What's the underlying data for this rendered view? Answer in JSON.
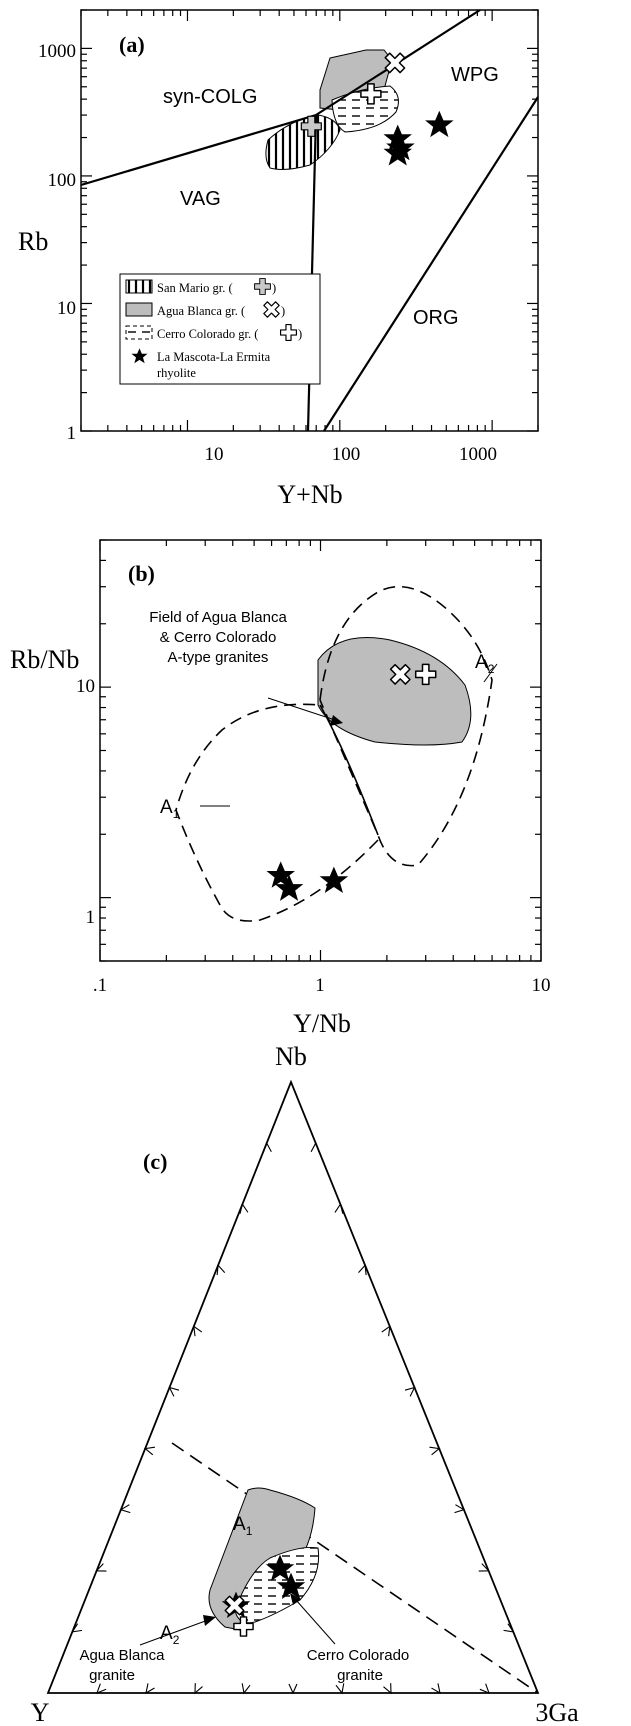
{
  "chart_data": [
    {
      "panel": "(a)",
      "type": "scatter",
      "xlabel": "Y+Nb",
      "ylabel": "Rb",
      "xscale": "log",
      "yscale": "log",
      "xlim": [
        2,
        2000
      ],
      "ylim": [
        1,
        2000
      ],
      "x_ticks": [
        "10",
        "100",
        "1000"
      ],
      "y_ticks": [
        "1",
        "10",
        "100",
        "1000"
      ],
      "fields": [
        "syn-COLG",
        "WPG",
        "VAG",
        "ORG"
      ],
      "legend_position": "bottom-left",
      "legend": [
        {
          "label": "San Mario gr. (",
          "after": ")",
          "symbol": "cross",
          "fill": "vertical-lines"
        },
        {
          "label": "Agua Blanca gr. (",
          "after": ")",
          "symbol": "x",
          "fill": "gray"
        },
        {
          "label": "Cerro Colorado gr. (",
          "after": ")",
          "symbol": "plus",
          "fill": "dashed"
        },
        {
          "label": "La Mascota-La Ermita",
          "label2": "rhyolite",
          "symbol": "star"
        }
      ],
      "series": [
        {
          "name": "San Mario gr.",
          "points": [
            {
              "x": 65,
              "y": 245
            }
          ]
        },
        {
          "name": "Agua Blanca gr.",
          "points": [
            {
              "x": 230,
              "y": 770
            }
          ]
        },
        {
          "name": "Cerro Colorado gr.",
          "points": [
            {
              "x": 160,
              "y": 440
            }
          ]
        },
        {
          "name": "La Mascota-La Ermita rhyolite",
          "points": [
            {
              "x": 240,
              "y": 195
            },
            {
              "x": 250,
              "y": 165
            },
            {
              "x": 240,
              "y": 150
            },
            {
              "x": 450,
              "y": 250
            }
          ]
        }
      ]
    },
    {
      "panel": "(b)",
      "type": "scatter",
      "xlabel": "Y/Nb",
      "ylabel": "Rb/Nb",
      "xscale": "log",
      "yscale": "log",
      "xlim": [
        0.1,
        10
      ],
      "ylim": [
        0.5,
        50
      ],
      "x_ticks": [
        ".1",
        "1",
        "10"
      ],
      "y_ticks": [
        "1",
        "10"
      ],
      "field_labels": [
        "A",
        "A"
      ],
      "field_label_subscripts": [
        "1",
        "2"
      ],
      "annotation": [
        "Field of Agua Blanca",
        "& Cerro Colorado",
        "A-type granites"
      ],
      "series": [
        {
          "name": "Agua Blanca gr.",
          "points": [
            {
              "x": 2.3,
              "y": 11.5
            }
          ]
        },
        {
          "name": "Cerro Colorado gr.",
          "points": [
            {
              "x": 3.0,
              "y": 11.5
            }
          ]
        },
        {
          "name": "La Mascota-La Ermita rhyolite",
          "points": [
            {
              "x": 0.66,
              "y": 1.27
            },
            {
              "x": 0.72,
              "y": 1.1
            },
            {
              "x": 1.15,
              "y": 1.2
            }
          ]
        }
      ]
    },
    {
      "panel": "(c)",
      "type": "ternary",
      "vertices": [
        "Nb",
        "Y",
        "3Ga"
      ],
      "field_labels": [
        "A",
        "A"
      ],
      "field_label_subscripts": [
        "1",
        "2"
      ],
      "annotations": [
        [
          "Agua Blanca",
          "granite"
        ],
        [
          "Cerro Colorado",
          "granite"
        ]
      ]
    }
  ]
}
